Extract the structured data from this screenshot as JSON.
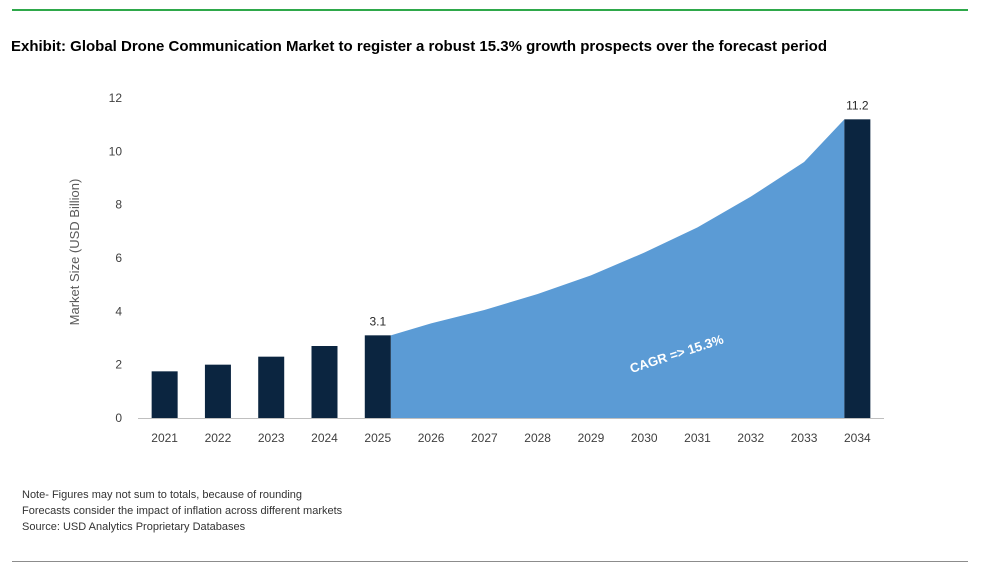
{
  "title": "Exhibit: Global Drone Communication Market to register a robust 15.3% growth prospects over the forecast period",
  "notes": [
    "Note- Figures may not sum to totals, because of rounding",
    "Forecasts consider the impact of inflation across different markets",
    "Source: USD Analytics Proprietary Databases"
  ],
  "colors": {
    "bar": "#0b2540",
    "area": "#5b9bd5",
    "axis": "#bfbfbf",
    "text": "#404040",
    "rule_top": "#2ea84a"
  },
  "chart_data": {
    "type": "bar",
    "categories": [
      "2021",
      "2022",
      "2023",
      "2024",
      "2025",
      "2026",
      "2027",
      "2028",
      "2029",
      "2030",
      "2031",
      "2032",
      "2033",
      "2034"
    ],
    "series": [
      {
        "values": [
          1.75,
          2.0,
          2.3,
          2.7,
          3.1,
          null,
          null,
          null,
          null,
          null,
          null,
          null,
          null,
          11.2
        ]
      }
    ],
    "area_values": [
      null,
      null,
      null,
      null,
      3.1,
      3.55,
      4.05,
      4.65,
      5.35,
      6.2,
      7.15,
      8.3,
      9.6,
      11.2
    ],
    "data_labels": [
      {
        "category": "2025",
        "text": "3.1"
      },
      {
        "category": "2034",
        "text": "11.2"
      }
    ],
    "annotation": "CAGR => 15.3%",
    "ylabel": "Market Size (USD Billion)",
    "xlabel": "",
    "ylim": [
      0,
      12
    ],
    "yticks": [
      0,
      2,
      4,
      6,
      8,
      10,
      12
    ],
    "grid": false,
    "legend": "none"
  }
}
